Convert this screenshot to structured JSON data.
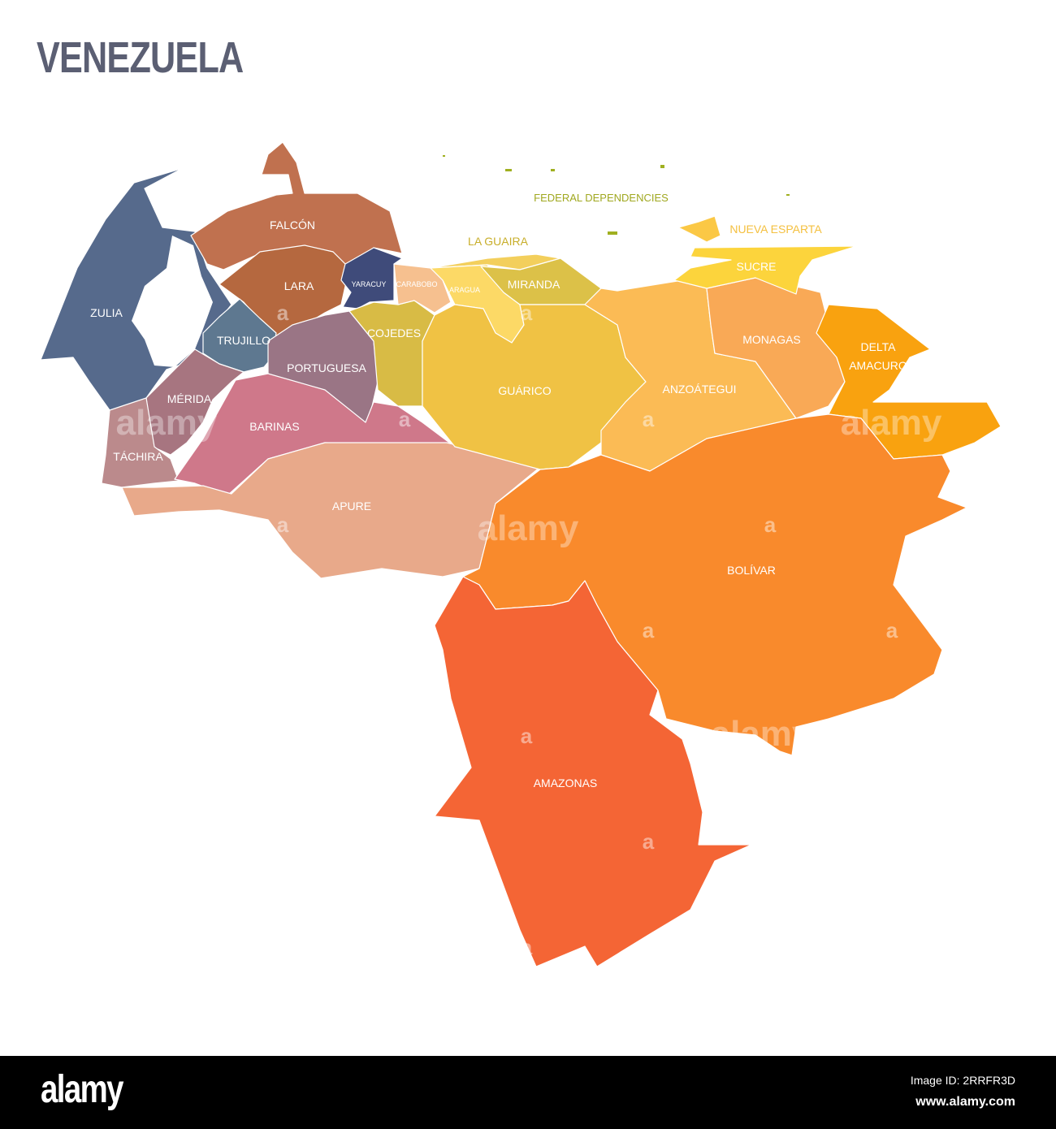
{
  "title": "VENEZUELA",
  "colors": {
    "title": "#5b5f73",
    "zulia": "#566a8c",
    "falcon": "#c0714f",
    "lara": "#b5683f",
    "yaracuy": "#3f4b7a",
    "trujillo": "#5e7890",
    "portuguesa": "#9a7585",
    "merida": "#a77580",
    "tachira": "#bb8a8c",
    "barinas": "#cf788a",
    "apure": "#e8a98a",
    "cojedes": "#d8bb45",
    "carabobo": "#f6c08f",
    "aragua": "#fcd966",
    "la_guaira": "#f3cf5c",
    "miranda": "#dcc148",
    "guarico": "#f0c244",
    "anzoategui": "#fbbb55",
    "monagas": "#f9a956",
    "sucre": "#fcd43c",
    "nueva_esparta": "#fbc845",
    "delta_amacuro": "#f9a20f",
    "bolivar": "#f98a2c",
    "amazonas": "#f46535",
    "federal_dependencies": "#a0b020"
  },
  "states": {
    "zulia": "ZULIA",
    "falcon": "FALCÓN",
    "lara": "LARA",
    "yaracuy": "YARACUY",
    "trujillo": "TRUJILLO",
    "portuguesa": "PORTUGUESA",
    "merida": "MÉRIDA",
    "tachira": "TÁCHIRA",
    "barinas": "BARINAS",
    "apure": "APURE",
    "cojedes": "COJEDES",
    "carabobo": "CARABOBO",
    "aragua": "ARAGUA",
    "la_guaira": "LA GUAIRA",
    "miranda": "MIRANDA",
    "guarico": "GUÁRICO",
    "anzoategui": "ANZOÁTEGUI",
    "monagas": "MONAGAS",
    "sucre": "SUCRE",
    "nueva_esparta": "NUEVA ESPARTA",
    "delta_amacuro_1": "DELTA",
    "delta_amacuro_2": "AMACURO",
    "bolivar": "BOLÍVAR",
    "amazonas": "AMAZONAS",
    "federal_dependencies": "FEDERAL DEPENDENCIES"
  },
  "watermark": {
    "word": "alamy",
    "letter": "a"
  },
  "footer": {
    "logo": "alamy",
    "image_id": "Image ID: 2RRFR3D",
    "site": "www.alamy.com"
  }
}
